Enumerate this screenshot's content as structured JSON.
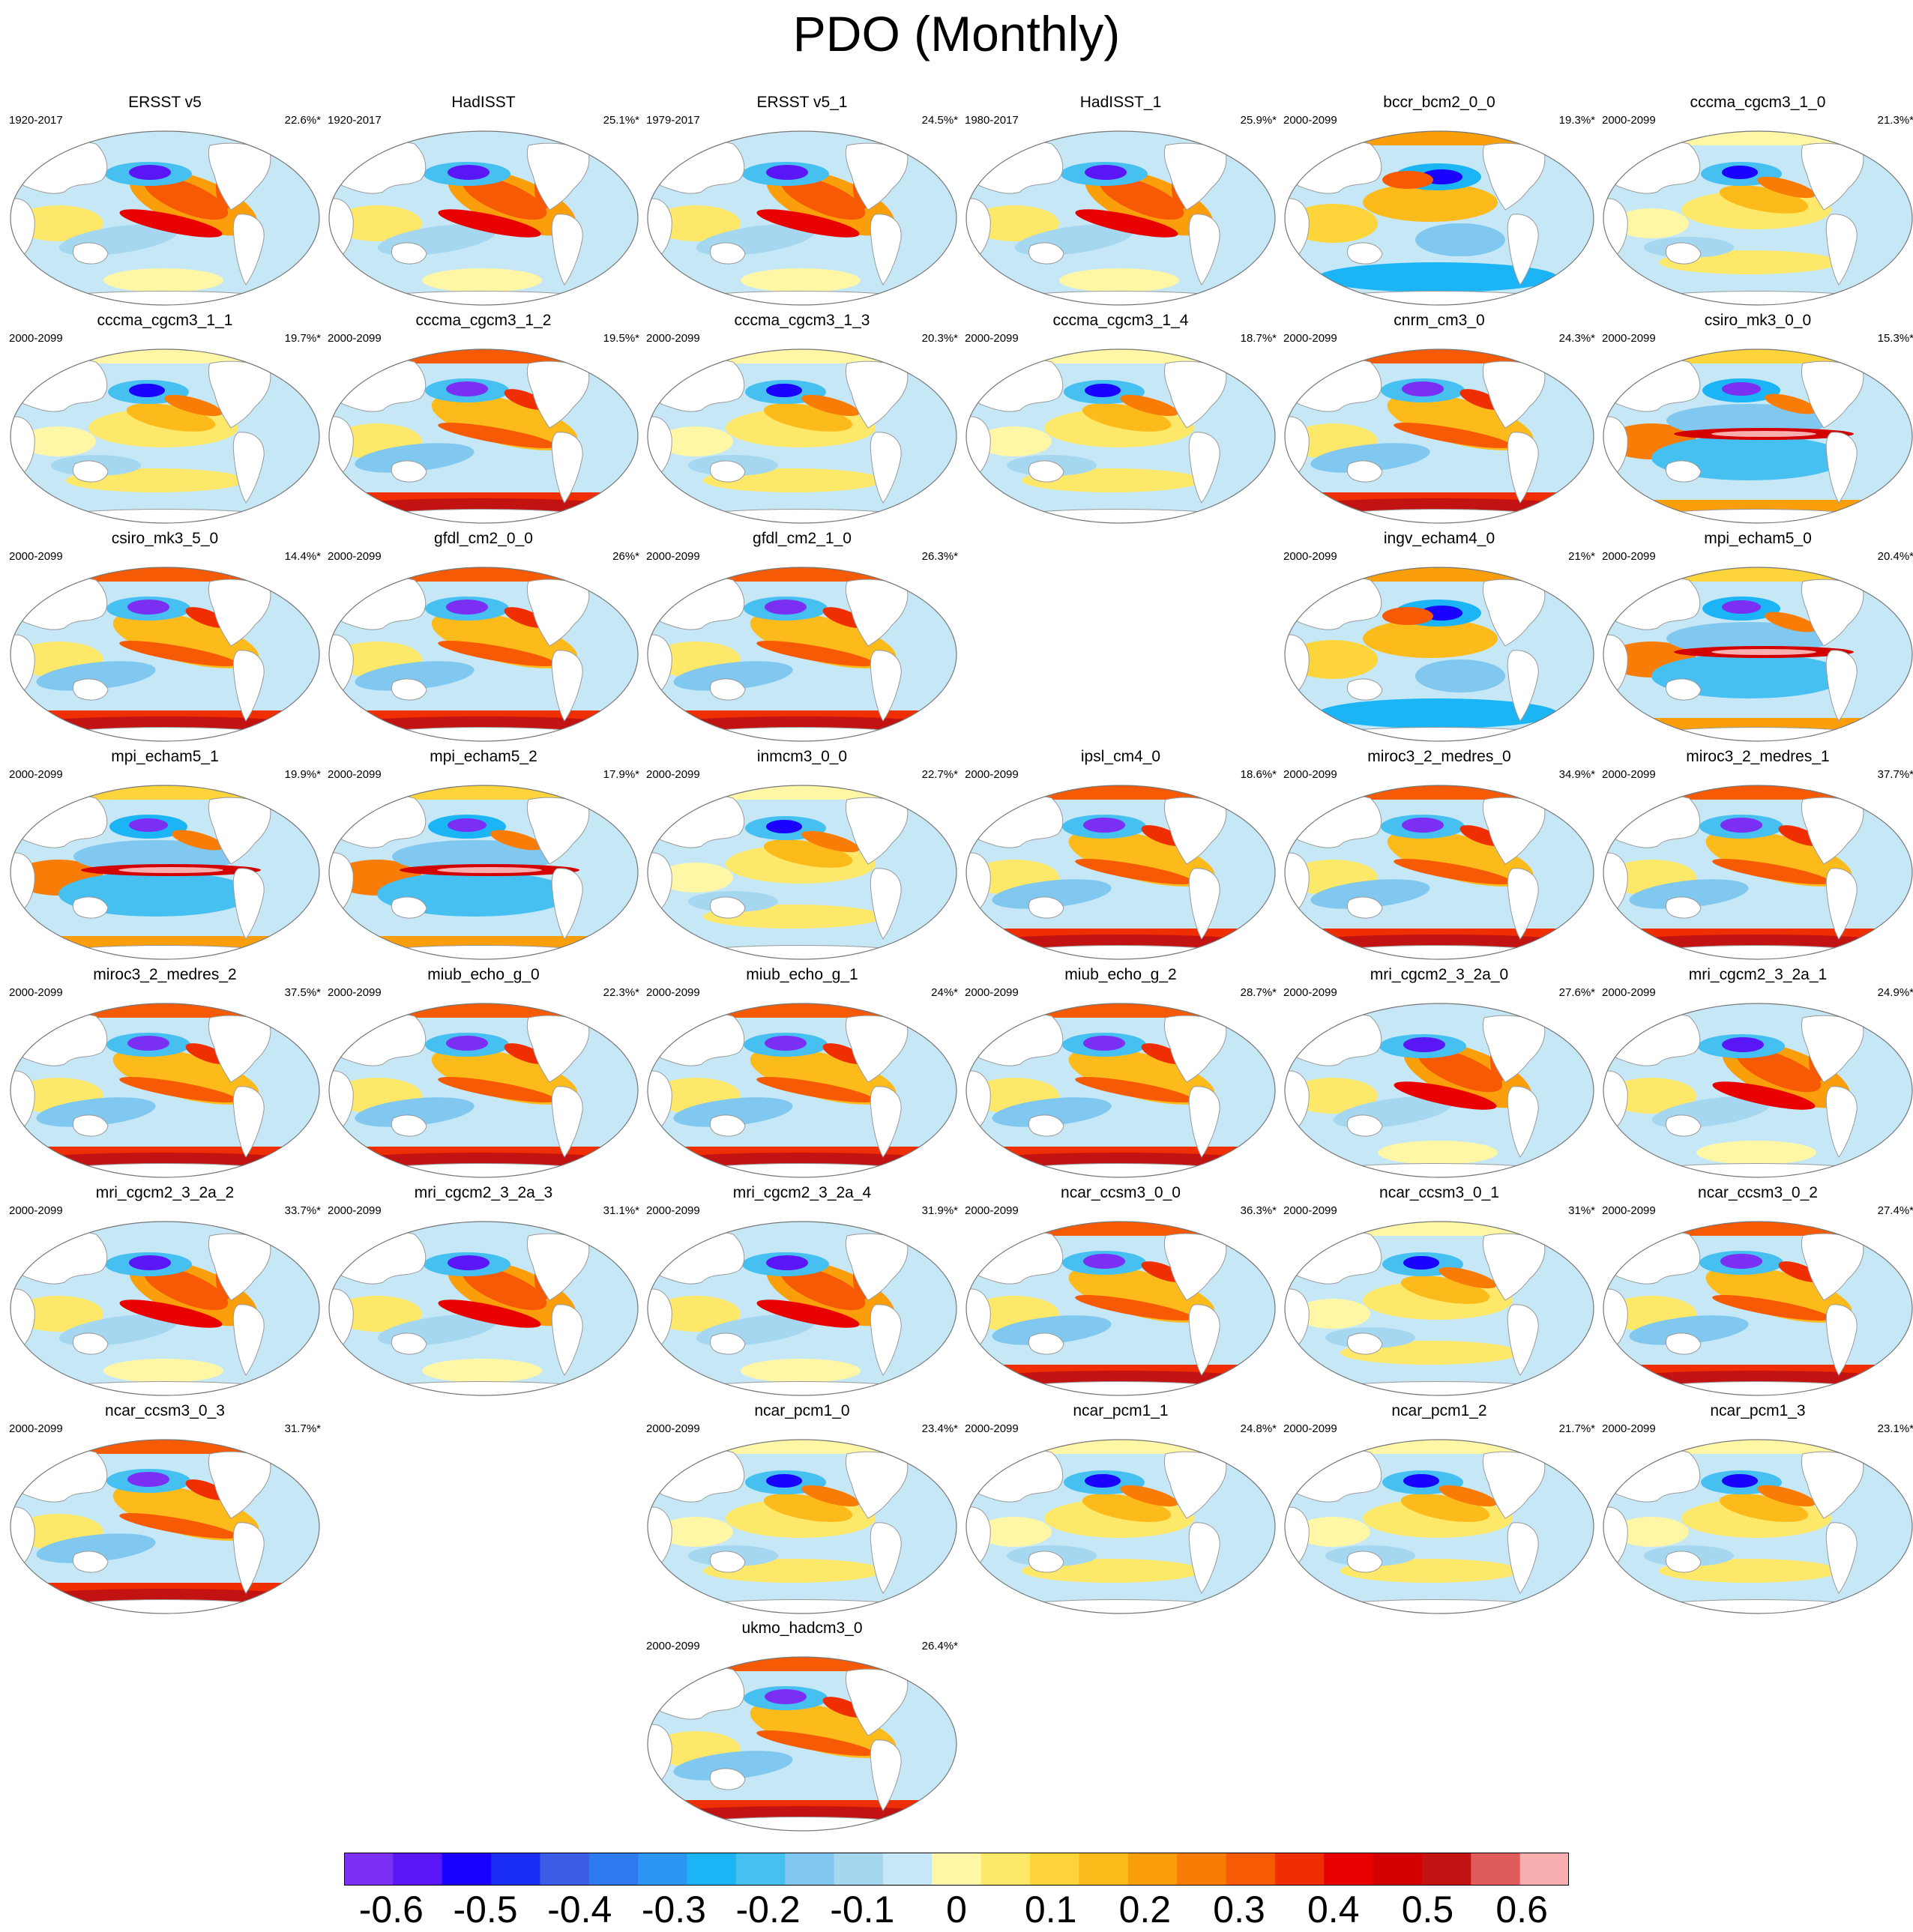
{
  "title": "PDO (Monthly)",
  "chart_data": {
    "type": "heatmap",
    "title": "PDO (Monthly)",
    "description_variable": "PDO monthly regression pattern of SST per dataset/model run",
    "colorbar": {
      "min": -0.65,
      "max": 0.65,
      "step": 0.05,
      "tick_labels": [
        "-0.6",
        "-0.5",
        "-0.4",
        "-0.3",
        "-0.2",
        "-0.1",
        "0",
        "0.1",
        "0.2",
        "0.3",
        "0.4",
        "0.5",
        "0.6"
      ],
      "tick_values": [
        -0.6,
        -0.5,
        -0.4,
        -0.3,
        -0.2,
        -0.1,
        0,
        0.1,
        0.2,
        0.3,
        0.4,
        0.5,
        0.6
      ],
      "colors": [
        "#7b2ff2",
        "#5a16f5",
        "#1a00ff",
        "#1a2ef5",
        "#3a5ce6",
        "#2e7bf0",
        "#2b96f3",
        "#1bb4f5",
        "#45c0f0",
        "#80c8ef",
        "#a6d7f1",
        "#c5e7f6",
        "#fff7a6",
        "#fde86a",
        "#fdd53a",
        "#fcbb1b",
        "#fb9e0b",
        "#f97c06",
        "#f75a04",
        "#ef2f02",
        "#e80000",
        "#d30000",
        "#c21212",
        "#e05b5b",
        "#f9aeb0"
      ]
    },
    "panels": [
      {
        "row": 0,
        "col": 0,
        "title": "ERSST v5",
        "period": "1920-2017",
        "pct": "22.6%*",
        "pattern": 0
      },
      {
        "row": 0,
        "col": 1,
        "title": "HadISST",
        "period": "1920-2017",
        "pct": "25.1%*",
        "pattern": 0
      },
      {
        "row": 0,
        "col": 2,
        "title": "ERSST v5_1",
        "period": "1979-2017",
        "pct": "24.5%*",
        "pattern": 0
      },
      {
        "row": 0,
        "col": 3,
        "title": "HadISST_1",
        "period": "1980-2017",
        "pct": "25.9%*",
        "pattern": 0
      },
      {
        "row": 0,
        "col": 4,
        "title": "bccr_bcm2_0_0",
        "period": "2000-2099",
        "pct": "19.3%*",
        "pattern": 2
      },
      {
        "row": 0,
        "col": 5,
        "title": "cccma_cgcm3_1_0",
        "period": "2000-2099",
        "pct": "21.3%*",
        "pattern": 1
      },
      {
        "row": 1,
        "col": 0,
        "title": "cccma_cgcm3_1_1",
        "period": "2000-2099",
        "pct": "19.7%*",
        "pattern": 1
      },
      {
        "row": 1,
        "col": 1,
        "title": "cccma_cgcm3_1_2",
        "period": "2000-2099",
        "pct": "19.5%*",
        "pattern": 3
      },
      {
        "row": 1,
        "col": 2,
        "title": "cccma_cgcm3_1_3",
        "period": "2000-2099",
        "pct": "20.3%*",
        "pattern": 1
      },
      {
        "row": 1,
        "col": 3,
        "title": "cccma_cgcm3_1_4",
        "period": "2000-2099",
        "pct": "18.7%*",
        "pattern": 1
      },
      {
        "row": 1,
        "col": 4,
        "title": "cnrm_cm3_0",
        "period": "2000-2099",
        "pct": "24.3%*",
        "pattern": 3
      },
      {
        "row": 1,
        "col": 5,
        "title": "csiro_mk3_0_0",
        "period": "2000-2099",
        "pct": "15.3%*",
        "pattern": 4
      },
      {
        "row": 2,
        "col": 0,
        "title": "csiro_mk3_5_0",
        "period": "2000-2099",
        "pct": "14.4%*",
        "pattern": 3
      },
      {
        "row": 2,
        "col": 1,
        "title": "gfdl_cm2_0_0",
        "period": "2000-2099",
        "pct": "26%*",
        "pattern": 3
      },
      {
        "row": 2,
        "col": 2,
        "title": "gfdl_cm2_1_0",
        "period": "2000-2099",
        "pct": "26.3%*",
        "pattern": 3
      },
      {
        "row": 2,
        "col": 4,
        "title": "ingv_echam4_0",
        "period": "2000-2099",
        "pct": "21%*",
        "pattern": 2
      },
      {
        "row": 2,
        "col": 5,
        "title": "mpi_echam5_0",
        "period": "2000-2099",
        "pct": "20.4%*",
        "pattern": 4
      },
      {
        "row": 3,
        "col": 0,
        "title": "mpi_echam5_1",
        "period": "2000-2099",
        "pct": "19.9%*",
        "pattern": 4
      },
      {
        "row": 3,
        "col": 1,
        "title": "mpi_echam5_2",
        "period": "2000-2099",
        "pct": "17.9%*",
        "pattern": 4
      },
      {
        "row": 3,
        "col": 2,
        "title": "inmcm3_0_0",
        "period": "2000-2099",
        "pct": "22.7%*",
        "pattern": 1
      },
      {
        "row": 3,
        "col": 3,
        "title": "ipsl_cm4_0",
        "period": "2000-2099",
        "pct": "18.6%*",
        "pattern": 3
      },
      {
        "row": 3,
        "col": 4,
        "title": "miroc3_2_medres_0",
        "period": "2000-2099",
        "pct": "34.9%*",
        "pattern": 3
      },
      {
        "row": 3,
        "col": 5,
        "title": "miroc3_2_medres_1",
        "period": "2000-2099",
        "pct": "37.7%*",
        "pattern": 3
      },
      {
        "row": 4,
        "col": 0,
        "title": "miroc3_2_medres_2",
        "period": "2000-2099",
        "pct": "37.5%*",
        "pattern": 3
      },
      {
        "row": 4,
        "col": 1,
        "title": "miub_echo_g_0",
        "period": "2000-2099",
        "pct": "22.3%*",
        "pattern": 3
      },
      {
        "row": 4,
        "col": 2,
        "title": "miub_echo_g_1",
        "period": "2000-2099",
        "pct": "24%*",
        "pattern": 3
      },
      {
        "row": 4,
        "col": 3,
        "title": "miub_echo_g_2",
        "period": "2000-2099",
        "pct": "28.7%*",
        "pattern": 3
      },
      {
        "row": 4,
        "col": 4,
        "title": "mri_cgcm2_3_2a_0",
        "period": "2000-2099",
        "pct": "27.6%*",
        "pattern": 0
      },
      {
        "row": 4,
        "col": 5,
        "title": "mri_cgcm2_3_2a_1",
        "period": "2000-2099",
        "pct": "24.9%*",
        "pattern": 0
      },
      {
        "row": 5,
        "col": 0,
        "title": "mri_cgcm2_3_2a_2",
        "period": "2000-2099",
        "pct": "33.7%*",
        "pattern": 0
      },
      {
        "row": 5,
        "col": 1,
        "title": "mri_cgcm2_3_2a_3",
        "period": "2000-2099",
        "pct": "31.1%*",
        "pattern": 0
      },
      {
        "row": 5,
        "col": 2,
        "title": "mri_cgcm2_3_2a_4",
        "period": "2000-2099",
        "pct": "31.9%*",
        "pattern": 0
      },
      {
        "row": 5,
        "col": 3,
        "title": "ncar_ccsm3_0_0",
        "period": "2000-2099",
        "pct": "36.3%*",
        "pattern": 3
      },
      {
        "row": 5,
        "col": 4,
        "title": "ncar_ccsm3_0_1",
        "period": "2000-2099",
        "pct": "31%*",
        "pattern": 1
      },
      {
        "row": 5,
        "col": 5,
        "title": "ncar_ccsm3_0_2",
        "period": "2000-2099",
        "pct": "27.4%*",
        "pattern": 3
      },
      {
        "row": 6,
        "col": 0,
        "title": "ncar_ccsm3_0_3",
        "period": "2000-2099",
        "pct": "31.7%*",
        "pattern": 3
      },
      {
        "row": 6,
        "col": 2,
        "title": "ncar_pcm1_0",
        "period": "2000-2099",
        "pct": "23.4%*",
        "pattern": 1
      },
      {
        "row": 6,
        "col": 3,
        "title": "ncar_pcm1_1",
        "period": "2000-2099",
        "pct": "24.8%*",
        "pattern": 1
      },
      {
        "row": 6,
        "col": 4,
        "title": "ncar_pcm1_2",
        "period": "2000-2099",
        "pct": "21.7%*",
        "pattern": 1
      },
      {
        "row": 6,
        "col": 5,
        "title": "ncar_pcm1_3",
        "period": "2000-2099",
        "pct": "23.1%*",
        "pattern": 1
      },
      {
        "row": 7,
        "col": 2,
        "title": "ukmo_hadcm3_0",
        "period": "2000-2099",
        "pct": "26.4%*",
        "pattern": 3
      }
    ]
  }
}
